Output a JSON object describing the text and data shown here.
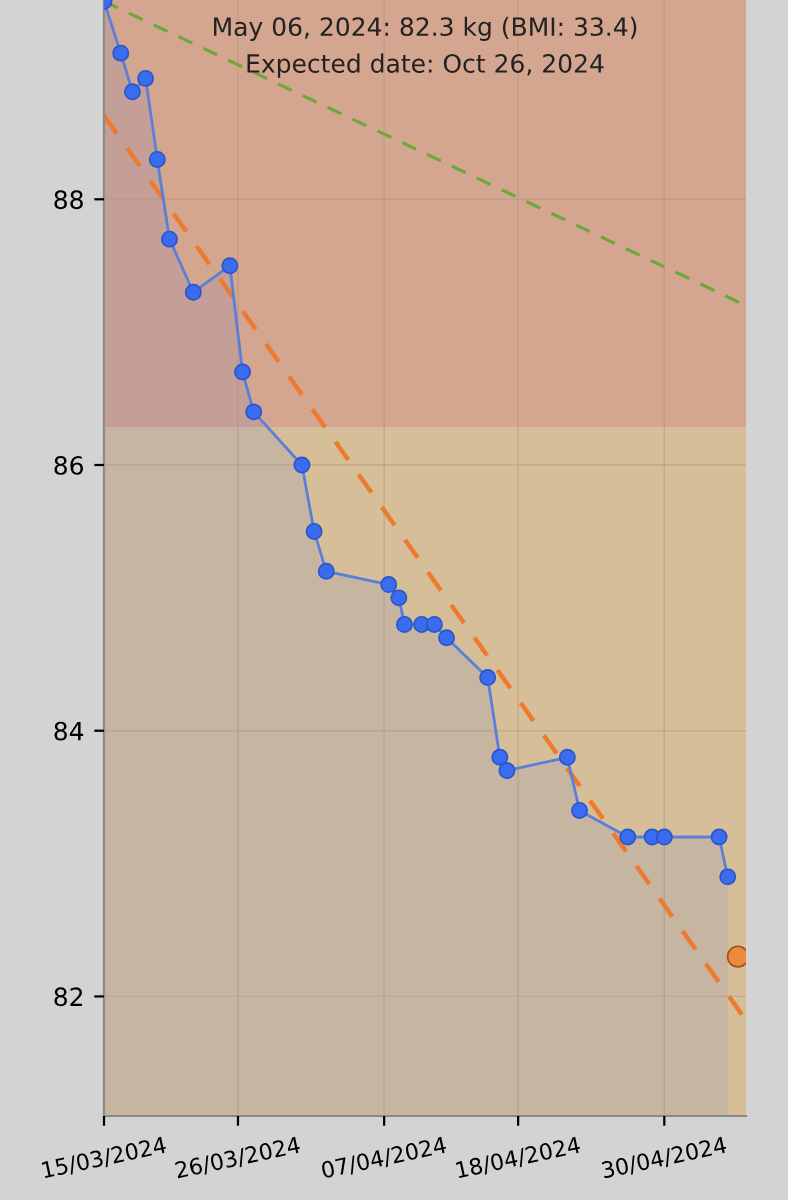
{
  "chart_data": {
    "type": "area",
    "annotations": [
      "May 06, 2024: 82.3 kg (BMI: 33.4)",
      "Expected date: Oct 26, 2024"
    ],
    "x": [
      "2024-03-15",
      "2024-03-16T09:00",
      "2024-03-17T08:00",
      "2024-03-18T10:00",
      "2024-03-19T09:00",
      "2024-03-20T09:00",
      "2024-03-22T08:00",
      "2024-03-25T08:00",
      "2024-03-26T09:00",
      "2024-03-27T07:00",
      "2024-03-31T06:00",
      "2024-04-01T06:00",
      "2024-04-02T06:00",
      "2024-04-07T09:00",
      "2024-04-08T05:00",
      "2024-04-08T16:00",
      "2024-04-10T02:00",
      "2024-04-11T03:00",
      "2024-04-12T03:00",
      "2024-04-15T12:00",
      "2024-04-16T12:00",
      "2024-04-17T02:00",
      "2024-04-22T01:00",
      "2024-04-23T01:00",
      "2024-04-27",
      "2024-04-29",
      "2024-04-30",
      "2024-05-04T12:00",
      "2024-05-05T05:00"
    ],
    "series": [
      {
        "color": "#3a6cf0",
        "values": [
          89.49,
          89.1,
          88.81,
          88.91,
          88.3,
          87.7,
          87.3,
          87.5,
          86.7,
          86.4,
          86.0,
          85.5,
          85.2,
          85.1,
          85.0,
          84.8,
          84.8,
          84.8,
          84.7,
          84.4,
          83.8,
          83.7,
          83.8,
          83.4,
          83.2,
          83.2,
          83.2,
          83.2,
          82.9
        ]
      },
      {
        "type": "scatter",
        "color": "#ee8a3c",
        "x": [
          "2024-05-06T01:00"
        ],
        "values": [
          82.3
        ]
      },
      {
        "type": "line",
        "color": "#ee7a30",
        "line_style": "dashed",
        "marker": "none",
        "x": [
          "2024-03-15",
          "2024-05-06T17:00"
        ],
        "values": [
          88.63,
          81.82
        ]
      },
      {
        "type": "line",
        "color": "#6aa83a",
        "line_style": "dashed",
        "marker": "none",
        "x": [
          "2024-03-15",
          "2024-05-06T17:00"
        ],
        "values": [
          89.49,
          87.2
        ]
      }
    ],
    "marker": "circle",
    "bands": [
      {
        "axis": "y",
        "from": 86.28,
        "to": 89.5,
        "color": "#d4a58f"
      },
      {
        "axis": "y",
        "from": 81.1,
        "to": 86.28,
        "color": "#d6be98"
      }
    ],
    "xlim": [
      "2024-03-15",
      "2024-05-06T17:00"
    ],
    "xticks": [
      {
        "value": "2024-03-15",
        "label": "15/03/2024"
      },
      {
        "value": "2024-03-26",
        "label": "26/03/2024"
      },
      {
        "value": "2024-04-07",
        "label": "07/04/2024"
      },
      {
        "value": "2024-04-18",
        "label": "18/04/2024"
      },
      {
        "value": "2024-04-30",
        "label": "30/04/2024"
      }
    ],
    "ylim": [
      81.1,
      89.5
    ],
    "yticks": [
      82,
      84,
      86,
      88
    ],
    "grid": true
  }
}
